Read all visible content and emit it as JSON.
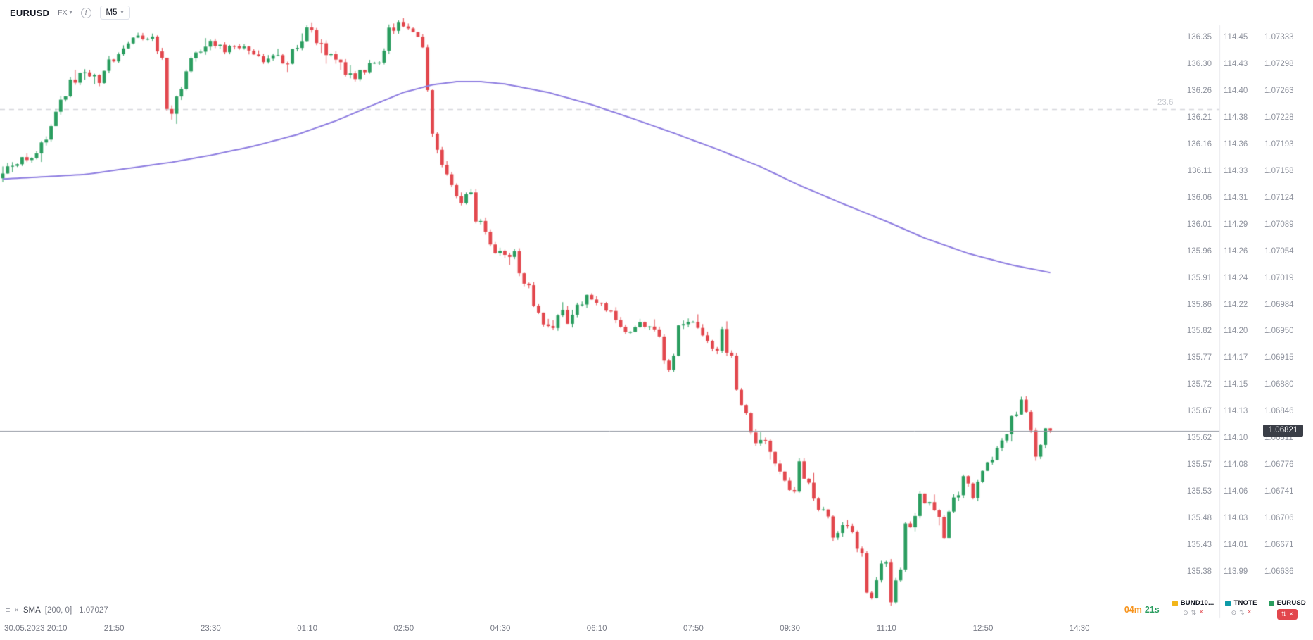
{
  "topbar": {
    "symbol": "EURUSD",
    "market_label": "FX",
    "timeframe": "M5"
  },
  "indicator": {
    "name": "SMA",
    "params": "[200, 0]",
    "value": "1.07027"
  },
  "fib_label": "23.6",
  "price_badge": "1.06821",
  "countdown": {
    "minutes": "04m",
    "seconds": "21s"
  },
  "instruments": [
    {
      "name": "BUND10...",
      "color": "#f2b61b",
      "active": false
    },
    {
      "name": "TNOTE",
      "color": "#0e9aa7",
      "active": false
    },
    {
      "name": "EURUSD",
      "color": "#2a9d5f",
      "active": true
    }
  ],
  "axes": {
    "time_labels": [
      "30.05.2023   20:10",
      "21:50",
      "23:30",
      "01:10",
      "02:50",
      "04:30",
      "06:10",
      "07:50",
      "09:30",
      "11:10",
      "12:50",
      "14:30"
    ],
    "price_rows": [
      [
        "136.35",
        "114.45",
        "1.07333"
      ],
      [
        "136.30",
        "114.43",
        "1.07298"
      ],
      [
        "136.26",
        "114.40",
        "1.07263"
      ],
      [
        "136.21",
        "114.38",
        "1.07228"
      ],
      [
        "136.16",
        "114.36",
        "1.07193"
      ],
      [
        "136.11",
        "114.33",
        "1.07158"
      ],
      [
        "136.06",
        "114.31",
        "1.07124"
      ],
      [
        "136.01",
        "114.29",
        "1.07089"
      ],
      [
        "135.96",
        "114.26",
        "1.07054"
      ],
      [
        "135.91",
        "114.24",
        "1.07019"
      ],
      [
        "135.86",
        "114.22",
        "1.06984"
      ],
      [
        "135.82",
        "114.20",
        "1.06950"
      ],
      [
        "135.77",
        "114.17",
        "1.06915"
      ],
      [
        "135.72",
        "114.15",
        "1.06880"
      ],
      [
        "135.67",
        "114.13",
        "1.06846"
      ],
      [
        "135.62",
        "114.10",
        "1.06811"
      ],
      [
        "135.57",
        "114.08",
        "1.06776"
      ],
      [
        "135.53",
        "114.06",
        "1.06741"
      ],
      [
        "135.48",
        "114.03",
        "1.06706"
      ],
      [
        "135.43",
        "114.01",
        "1.06671"
      ],
      [
        "135.38",
        "113.99",
        "1.06636"
      ]
    ]
  },
  "chart_data": {
    "type": "candlestick",
    "symbol": "EURUSD",
    "timeframe": "M5",
    "session_start": "30.05.2023 20:10",
    "current_price": 1.06821,
    "session_high": 1.0735,
    "session_low": 1.06583,
    "fib_236_price": 1.0724,
    "y_axis": {
      "top_price": 1.07333,
      "bottom_price": 1.06636
    },
    "colors": {
      "up": "#2a9d5f",
      "down": "#e2474d",
      "sma": "#8d7ce0",
      "fib_line": "#d5d7dc",
      "price_line": "#9196a1"
    },
    "candle_count": 218,
    "price_path": [
      [
        0,
        1.0715
      ],
      [
        3,
        1.07168
      ],
      [
        7,
        1.0718
      ],
      [
        9,
        1.07196
      ],
      [
        13,
        1.07245
      ],
      [
        15,
        1.07273
      ],
      [
        18,
        1.07289
      ],
      [
        21,
        1.07278
      ],
      [
        23,
        1.073
      ],
      [
        26,
        1.07322
      ],
      [
        28,
        1.07333
      ],
      [
        32,
        1.07336
      ],
      [
        34,
        1.073
      ],
      [
        35,
        1.0725
      ],
      [
        36,
        1.07232
      ],
      [
        37,
        1.0726
      ],
      [
        39,
        1.07289
      ],
      [
        42,
        1.07322
      ],
      [
        44,
        1.0733
      ],
      [
        47,
        1.07317
      ],
      [
        49,
        1.07325
      ],
      [
        52,
        1.07317
      ],
      [
        55,
        1.07306
      ],
      [
        57,
        1.07314
      ],
      [
        60,
        1.073
      ],
      [
        62,
        1.07328
      ],
      [
        65,
        1.0734
      ],
      [
        67,
        1.07322
      ],
      [
        69,
        1.07306
      ],
      [
        72,
        1.07289
      ],
      [
        74,
        1.07278
      ],
      [
        76,
        1.07295
      ],
      [
        79,
        1.07303
      ],
      [
        81,
        1.07338
      ],
      [
        83,
        1.0735
      ],
      [
        85,
        1.07344
      ],
      [
        87,
        1.0733
      ],
      [
        88,
        1.0732
      ],
      [
        89,
        1.07245
      ],
      [
        90,
        1.07201
      ],
      [
        92,
        1.07168
      ],
      [
        94,
        1.07146
      ],
      [
        96,
        1.07119
      ],
      [
        98,
        1.0713
      ],
      [
        99,
        1.07103
      ],
      [
        101,
        1.07086
      ],
      [
        103,
        1.07059
      ],
      [
        106,
        1.07042
      ],
      [
        107,
        1.07053
      ],
      [
        109,
        1.0702
      ],
      [
        111,
        1.06987
      ],
      [
        113,
        1.06965
      ],
      [
        115,
        1.06949
      ],
      [
        117,
        1.06976
      ],
      [
        118,
        1.0696
      ],
      [
        120,
        1.06982
      ],
      [
        122,
        1.06993
      ],
      [
        125,
        1.06985
      ],
      [
        127,
        1.06976
      ],
      [
        129,
        1.06956
      ],
      [
        131,
        1.06945
      ],
      [
        133,
        1.06965
      ],
      [
        136,
        1.06952
      ],
      [
        138,
        1.06916
      ],
      [
        139,
        1.06888
      ],
      [
        141,
        1.06949
      ],
      [
        143,
        1.06967
      ],
      [
        145,
        1.06949
      ],
      [
        147,
        1.06932
      ],
      [
        149,
        1.06921
      ],
      [
        150,
        1.06943
      ],
      [
        152,
        1.0691
      ],
      [
        153,
        1.06872
      ],
      [
        155,
        1.06845
      ],
      [
        156,
        1.06801
      ],
      [
        158,
        1.06812
      ],
      [
        160,
        1.06792
      ],
      [
        162,
        1.06773
      ],
      [
        163,
        1.06751
      ],
      [
        165,
        1.06737
      ],
      [
        166,
        1.06768
      ],
      [
        168,
        1.06754
      ],
      [
        170,
        1.06726
      ],
      [
        172,
        1.06707
      ],
      [
        173,
        1.06682
      ],
      [
        175,
        1.06704
      ],
      [
        177,
        1.06691
      ],
      [
        179,
        1.06652
      ],
      [
        180,
        1.06619
      ],
      [
        181,
        1.06597
      ],
      [
        183,
        1.06636
      ],
      [
        184,
        1.06664
      ],
      [
        185,
        1.06616
      ],
      [
        187,
        1.06636
      ],
      [
        188,
        1.0668
      ],
      [
        190,
        1.06713
      ],
      [
        191,
        1.06735
      ],
      [
        193,
        1.06724
      ],
      [
        195,
        1.06707
      ],
      [
        196,
        1.06691
      ],
      [
        198,
        1.06724
      ],
      [
        200,
        1.06768
      ],
      [
        201,
        1.06748
      ],
      [
        202,
        1.06737
      ],
      [
        204,
        1.06762
      ],
      [
        205,
        1.06776
      ],
      [
        207,
        1.068
      ],
      [
        209,
        1.06817
      ],
      [
        210,
        1.06839
      ],
      [
        212,
        1.06857
      ],
      [
        214,
        1.06828
      ],
      [
        215,
        1.068
      ],
      [
        216,
        1.06806
      ],
      [
        217,
        1.06821
      ]
    ],
    "sma": {
      "period": 200,
      "offset": 0,
      "value": 1.07027,
      "points": [
        [
          0,
          1.07149
        ],
        [
          17,
          1.07155
        ],
        [
          26,
          1.07163
        ],
        [
          35,
          1.07171
        ],
        [
          43,
          1.0718
        ],
        [
          52,
          1.07192
        ],
        [
          61,
          1.07207
        ],
        [
          69,
          1.07225
        ],
        [
          78,
          1.07249
        ],
        [
          83,
          1.07262
        ],
        [
          89,
          1.07272
        ],
        [
          94,
          1.07276
        ],
        [
          99,
          1.07276
        ],
        [
          104,
          1.07273
        ],
        [
          113,
          1.07262
        ],
        [
          122,
          1.07246
        ],
        [
          130,
          1.07229
        ],
        [
          139,
          1.07209
        ],
        [
          148,
          1.07188
        ],
        [
          157,
          1.07165
        ],
        [
          165,
          1.07141
        ],
        [
          174,
          1.07117
        ],
        [
          183,
          1.07094
        ],
        [
          191,
          1.07072
        ],
        [
          200,
          1.07052
        ],
        [
          209,
          1.07037
        ],
        [
          217,
          1.07027
        ]
      ]
    }
  }
}
